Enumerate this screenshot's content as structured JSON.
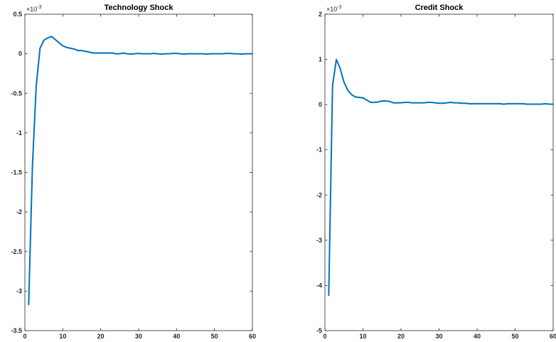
{
  "chart_data": [
    {
      "type": "line",
      "title": "Technology Shock",
      "xlabel": "",
      "ylabel": "",
      "multiplier": {
        "base": "×10",
        "exp": "-3"
      },
      "xlim": [
        0,
        60
      ],
      "ylim": [
        -3.5,
        0.5
      ],
      "xticks": [
        "0",
        "10",
        "20",
        "30",
        "40",
        "50",
        "60"
      ],
      "xtick_values": [
        0,
        10,
        20,
        30,
        40,
        50,
        60
      ],
      "yticks": [
        "0.5",
        "0",
        "-0.5",
        "-1",
        "-1.5",
        "-2",
        "-2.5",
        "-3",
        "-3.5"
      ],
      "ytick_values": [
        0.5,
        0,
        -0.5,
        -1,
        -1.5,
        -2,
        -2.5,
        -3,
        -3.5
      ],
      "grid": false,
      "line_color": "#0072BD",
      "series": [
        {
          "x": [
            1,
            2,
            3,
            4,
            5,
            6,
            7,
            8,
            9,
            10,
            11,
            12,
            13,
            14,
            15,
            16,
            17,
            18,
            19,
            20,
            21,
            22,
            23,
            24,
            25,
            26,
            27,
            28,
            29,
            30,
            31,
            32,
            33,
            34,
            35,
            36,
            37,
            38,
            39,
            40,
            41,
            42,
            43,
            44,
            45,
            46,
            47,
            48,
            49,
            50,
            51,
            52,
            53,
            54,
            55,
            56,
            57,
            58,
            59,
            60
          ],
          "values": [
            -3.17,
            -1.4,
            -0.4,
            0.07,
            0.17,
            0.2,
            0.22,
            0.18,
            0.14,
            0.1,
            0.08,
            0.07,
            0.06,
            0.04,
            0.04,
            0.03,
            0.02,
            0.01,
            0.01,
            0.01,
            0.01,
            0.01,
            0.01,
            0.0,
            0.0,
            0.01,
            0.0,
            -0.005,
            0.0,
            0.005,
            0.0,
            0.0,
            0.0,
            0.005,
            0.0,
            -0.005,
            0.0,
            0.0,
            0.005,
            0.005,
            0.0,
            -0.005,
            0.0,
            0.0,
            0.0,
            0.0,
            0.0,
            -0.005,
            0.0,
            0.0,
            0.0,
            0.0,
            0.005,
            0.005,
            0.0,
            0.0,
            -0.005,
            0.0,
            0.0,
            0.0
          ]
        }
      ]
    },
    {
      "type": "line",
      "title": "Credit Shock",
      "xlabel": "",
      "ylabel": "",
      "multiplier": {
        "base": "×10",
        "exp": "-3"
      },
      "xlim": [
        0,
        60
      ],
      "ylim": [
        -5,
        2
      ],
      "xticks": [
        "0",
        "10",
        "20",
        "30",
        "40",
        "50",
        "60"
      ],
      "xtick_values": [
        0,
        10,
        20,
        30,
        40,
        50,
        60
      ],
      "yticks": [
        "2",
        "1",
        "0",
        "-1",
        "-2",
        "-3",
        "-4",
        "-5"
      ],
      "ytick_values": [
        2,
        1,
        0,
        -1,
        -2,
        -3,
        -4,
        -5
      ],
      "grid": false,
      "line_color": "#0072BD",
      "series": [
        {
          "x": [
            1,
            2,
            3,
            4,
            5,
            6,
            7,
            8,
            9,
            10,
            11,
            12,
            13,
            14,
            15,
            16,
            17,
            18,
            19,
            20,
            21,
            22,
            23,
            24,
            25,
            26,
            27,
            28,
            29,
            30,
            31,
            32,
            33,
            34,
            35,
            36,
            37,
            38,
            39,
            40,
            41,
            42,
            43,
            44,
            45,
            46,
            47,
            48,
            49,
            50,
            51,
            52,
            53,
            54,
            55,
            56,
            57,
            58,
            59,
            60
          ],
          "values": [
            -4.22,
            0.42,
            1.0,
            0.8,
            0.5,
            0.32,
            0.22,
            0.17,
            0.16,
            0.15,
            0.1,
            0.05,
            0.05,
            0.06,
            0.08,
            0.08,
            0.07,
            0.04,
            0.04,
            0.04,
            0.05,
            0.05,
            0.04,
            0.04,
            0.04,
            0.04,
            0.05,
            0.05,
            0.04,
            0.03,
            0.03,
            0.04,
            0.05,
            0.04,
            0.04,
            0.03,
            0.03,
            0.02,
            0.02,
            0.02,
            0.02,
            0.02,
            0.02,
            0.02,
            0.02,
            0.02,
            0.01,
            0.02,
            0.02,
            0.02,
            0.02,
            0.02,
            0.01,
            0.01,
            0.01,
            0.01,
            0.01,
            0.02,
            0.01,
            0.01
          ]
        }
      ]
    }
  ]
}
